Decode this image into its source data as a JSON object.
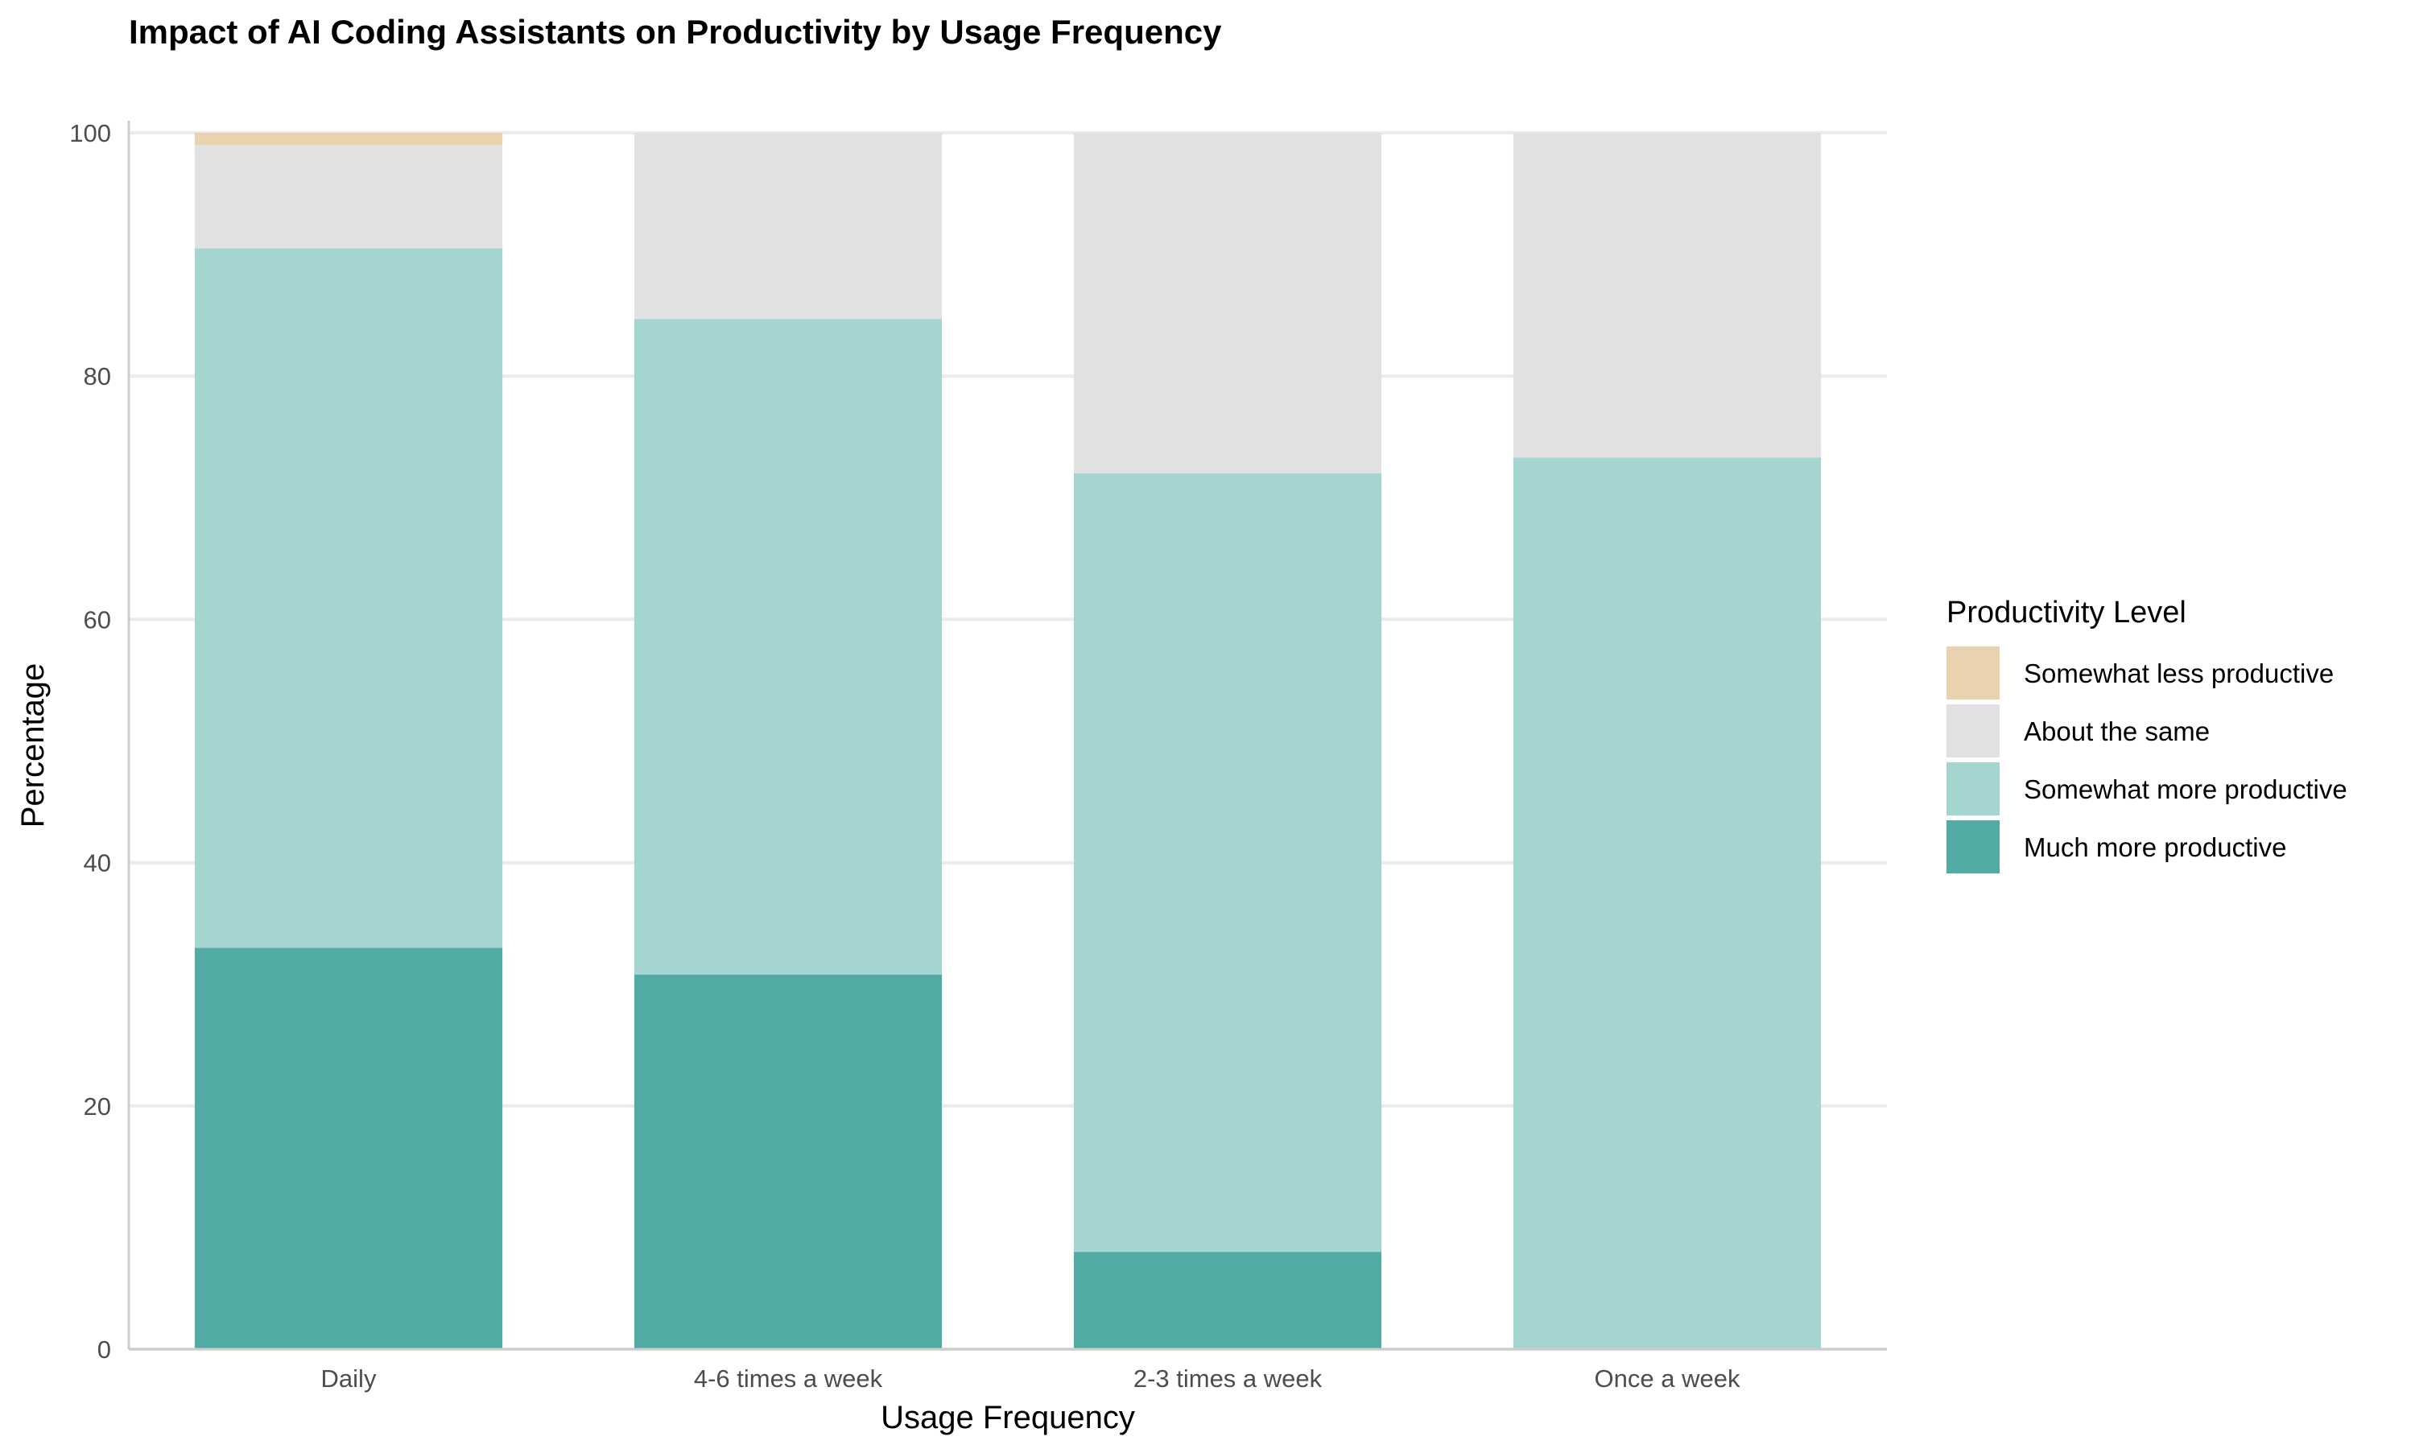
{
  "chart_data": {
    "type": "bar",
    "stacked": true,
    "title": "Impact of AI Coding Assistants on Productivity by Usage Frequency",
    "xlabel": "Usage Frequency",
    "ylabel": "Percentage",
    "ylim": [
      0,
      100
    ],
    "yticks": [
      0,
      20,
      40,
      60,
      80,
      100
    ],
    "grid": true,
    "legend_title": "Productivity Level",
    "legend_position": "right",
    "categories": [
      "Daily",
      "4-6 times a week",
      "2-3 times a week",
      "Once a week"
    ],
    "series": [
      {
        "name": "Much more productive",
        "color": "#52ABA3",
        "values": [
          33.0,
          30.8,
          8.0,
          0.0
        ]
      },
      {
        "name": "Somewhat more productive",
        "color": "#A5D5D1",
        "values": [
          57.5,
          53.9,
          64.0,
          73.3
        ]
      },
      {
        "name": "About the same",
        "color": "#E1E1E1",
        "values": [
          8.5,
          15.3,
          28.0,
          26.7
        ]
      },
      {
        "name": "Somewhat less productive",
        "color": "#E8D3AE",
        "values": [
          1.0,
          0.0,
          0.0,
          0.0
        ]
      }
    ],
    "legend_order": [
      "Somewhat less productive",
      "About the same",
      "Somewhat more productive",
      "Much more productive"
    ]
  }
}
